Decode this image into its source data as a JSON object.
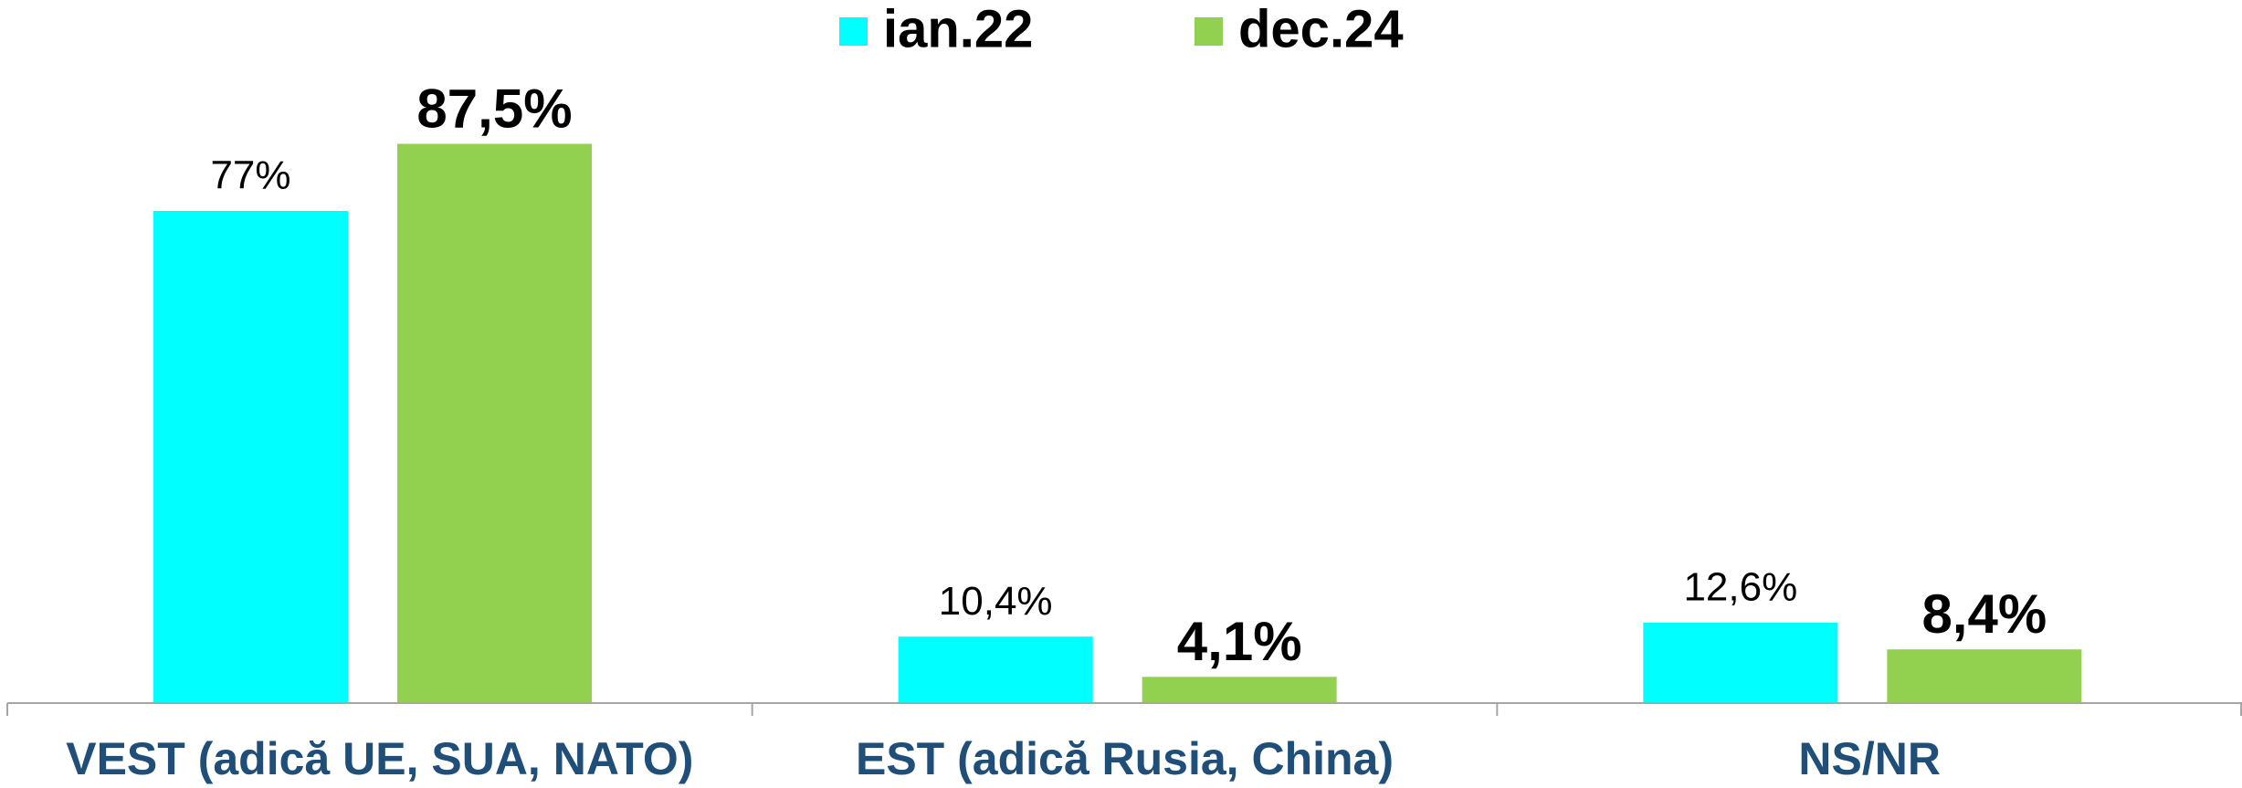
{
  "chart_data": {
    "type": "bar",
    "categories": [
      "VEST (adică UE, SUA, NATO)",
      "EST (adică Rusia, China)",
      "NS/NR"
    ],
    "series": [
      {
        "name": "ian.22",
        "color": "#00ffff",
        "values": [
          77,
          10.4,
          12.6
        ],
        "value_labels": [
          "77%",
          "10,4%",
          "12,6%"
        ]
      },
      {
        "name": "dec.24",
        "color": "#92d050",
        "values": [
          87.5,
          4.1,
          8.4
        ],
        "value_labels": [
          "87,5%",
          "4,1%",
          "8,4%"
        ]
      }
    ]
  }
}
